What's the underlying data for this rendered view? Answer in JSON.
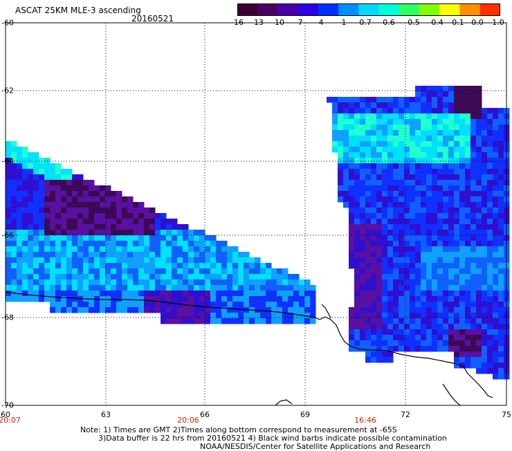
{
  "header": {
    "title": "ASCAT 25KM MLE-3 ascending",
    "date": "20160521"
  },
  "colorbar": {
    "ticks": [
      "-16",
      "-13",
      "-10",
      "-7",
      "-4",
      "-1",
      "-0.7",
      "-0.6",
      "-0.5",
      "-0.4",
      "-0.1",
      "0.0",
      "1.0"
    ],
    "colors": [
      "#3a0030",
      "#4b0066",
      "#4a00a8",
      "#2a00e8",
      "#0030ff",
      "#0090ff",
      "#00d8ff",
      "#00ffd8",
      "#30ff60",
      "#80ff00",
      "#ffff00",
      "#ff9000",
      "#ff3000"
    ]
  },
  "axes": {
    "lat_labels": [
      "-60",
      "-62",
      "-64",
      "-66",
      "-68",
      "-70"
    ],
    "lon_labels": [
      "60",
      "63",
      "66",
      "69",
      "72",
      "75"
    ],
    "time_labels": [
      "20:07",
      "20:06",
      "16:46"
    ]
  },
  "notes": {
    "line1": "Note: 1) Times are GMT 2)Times along bottom correspond to measurement at -65S",
    "line2": "3)Data buffer is 22 hrs from 20160521 4) Black wind barbs indicate possible contamination",
    "line3": "NOAA/NESDIS/Center for Satellite Applications and Research"
  },
  "palette": {
    "dark_purple": "#3c0a55",
    "purple": "#5a10a0",
    "indigo": "#3010d0",
    "blue": "#1030ff",
    "mid_blue": "#1060ff",
    "light_blue": "#10a0ff",
    "cyan": "#00e0ff",
    "aqua": "#20ffd0",
    "green": "#30ff40"
  }
}
